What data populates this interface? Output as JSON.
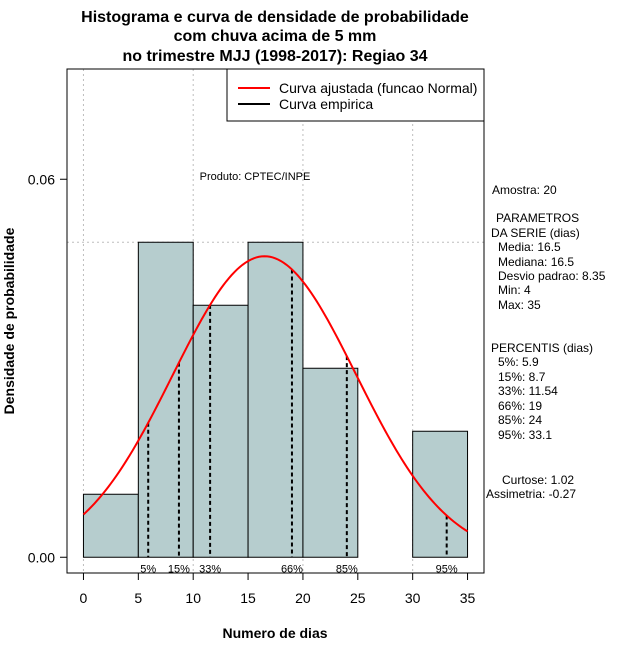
{
  "chart_data": {
    "type": "bar",
    "title": [
      "Histograma e curva de densidade de probabilidade",
      "com chuva acima de 5 mm",
      "no trimestre MJJ (1998-2017): Regiao 34"
    ],
    "xlabel": "Numero de dias",
    "ylabel": "Densidade de probabilidade",
    "xlim": [
      -1.5,
      36.5
    ],
    "ylim": [
      -0.0025,
      0.0775
    ],
    "x_ticks": [
      0,
      5,
      10,
      15,
      20,
      25,
      30,
      35
    ],
    "x_tick_labels": [
      "0",
      "5",
      "10",
      "15",
      "20",
      "25",
      "30",
      "35"
    ],
    "y_ticks": [
      0.0,
      0.06
    ],
    "y_tick_labels": [
      "0.00",
      "0.06"
    ],
    "grid": true,
    "grid_x": [
      0,
      10,
      20,
      30
    ],
    "grid_y": [
      0.05
    ],
    "bars": [
      {
        "x0": 0,
        "x1": 5,
        "value": 0.01
      },
      {
        "x0": 5,
        "x1": 10,
        "value": 0.05
      },
      {
        "x0": 10,
        "x1": 15,
        "value": 0.04
      },
      {
        "x0": 15,
        "x1": 20,
        "value": 0.05
      },
      {
        "x0": 20,
        "x1": 25,
        "value": 0.03
      },
      {
        "x0": 25,
        "x1": 30,
        "value": 0.0
      },
      {
        "x0": 30,
        "x1": 35,
        "value": 0.02
      }
    ],
    "bar_color": "#b6cdce",
    "normal_curve": {
      "name": "Curva ajustada (funcao Normal)",
      "mean": 16.5,
      "sd": 8.35,
      "x_range": [
        0,
        35
      ],
      "color": "#ff0000"
    },
    "empirical_curve": {
      "name": "Curva empirica",
      "color": "#000000"
    },
    "legend_position": "top-right",
    "percentiles": [
      {
        "label": "5%",
        "x": 5.9
      },
      {
        "label": "15%",
        "x": 8.7
      },
      {
        "label": "33%",
        "x": 11.54
      },
      {
        "label": "66%",
        "x": 19
      },
      {
        "label": "85%",
        "x": 24
      },
      {
        "label": "95%",
        "x": 33.1
      }
    ],
    "annotation": "Produto: CPTEC/INPE"
  },
  "side_panel": {
    "amostra": "Amostra: 20",
    "parametros": [
      "PARAMETROS",
      "DA SERIE (dias)",
      "Media: 16.5",
      "Mediana: 16.5",
      "Desvio padrao: 8.35",
      "Min: 4",
      "Max: 35"
    ],
    "percentis": [
      "PERCENTIS (dias)",
      "5%: 5.9",
      "15%: 8.7",
      "33%: 11.54",
      "66%: 19",
      "85%: 24",
      "95%: 33.1"
    ],
    "curtose": "Curtose: 1.02",
    "assimetria": "Assimetria: -0.27"
  }
}
